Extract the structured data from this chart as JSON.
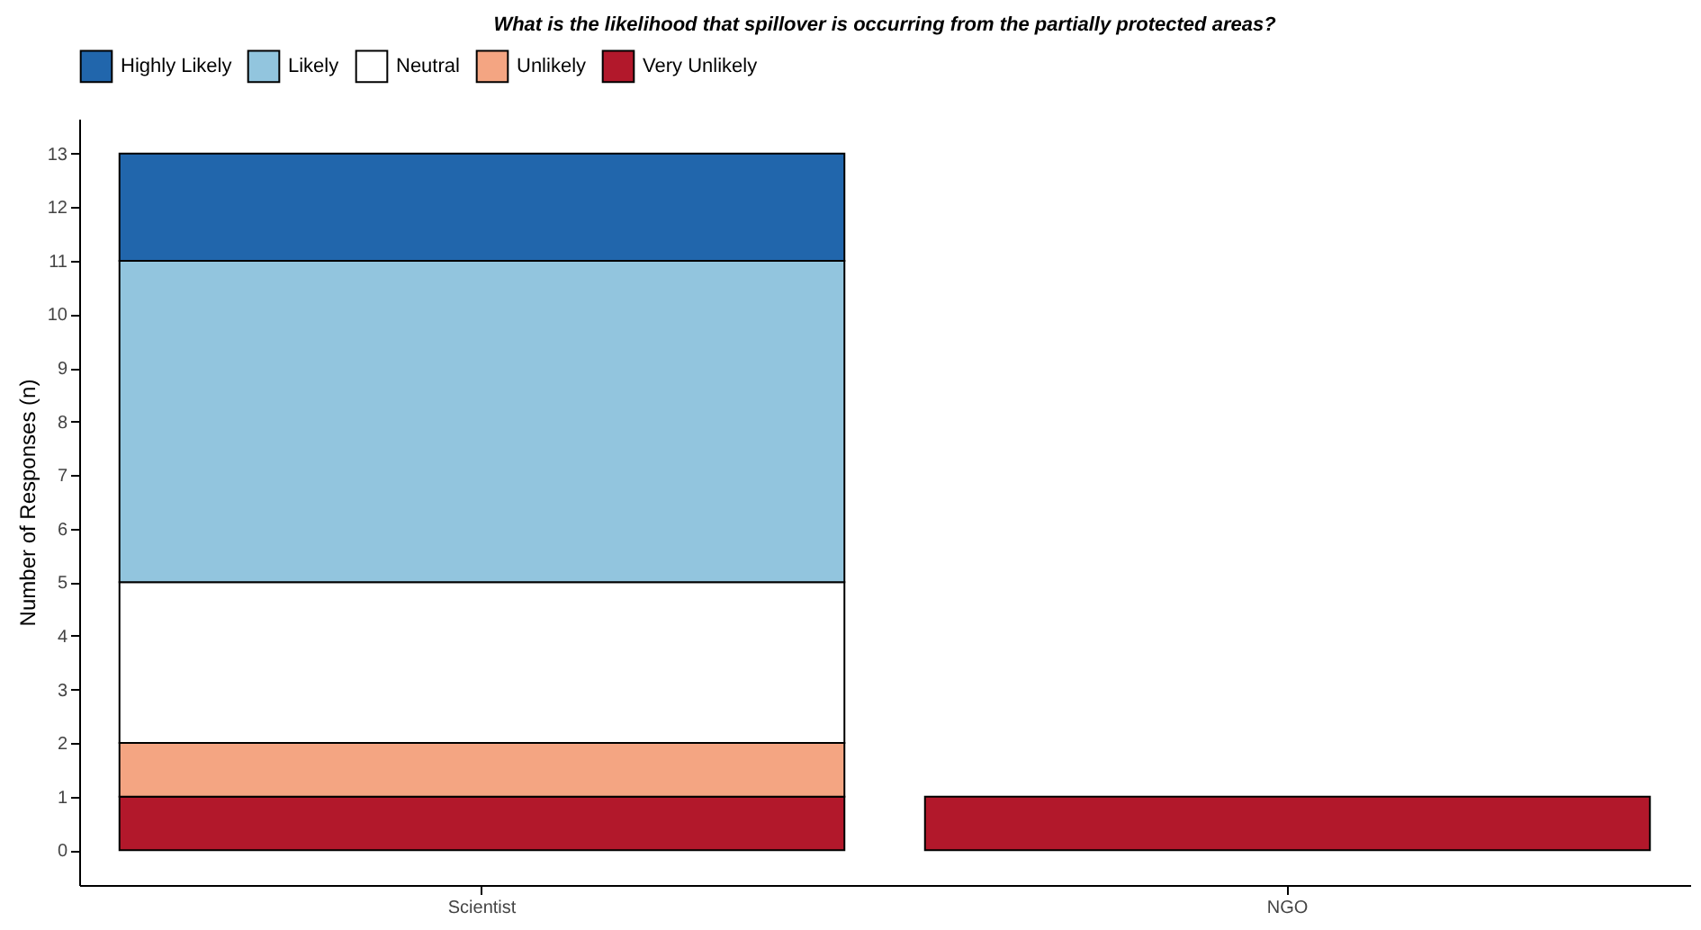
{
  "chart_data": {
    "type": "bar",
    "title": "What is the likelihood that spillover is occurring from the partially protected areas?",
    "ylabel": "Number of Responses (n)",
    "categories": [
      "Scientist",
      "NGO"
    ],
    "stacked": true,
    "legend": "top",
    "series": [
      {
        "name": "Very Unlikely",
        "color": "#b2182b",
        "values": [
          1,
          1
        ]
      },
      {
        "name": "Unlikely",
        "color": "#f4a582",
        "values": [
          1,
          null
        ]
      },
      {
        "name": "Neutral",
        "color": "#ffffff",
        "values": [
          3,
          null
        ]
      },
      {
        "name": "Likely",
        "color": "#92c5de",
        "values": [
          6,
          null
        ]
      },
      {
        "name": "Highly Likely",
        "color": "#2166ac",
        "values": [
          2,
          null
        ]
      }
    ],
    "ylim": [
      -0.65,
      13.65
    ],
    "yticks": [
      0,
      1,
      2,
      3,
      4,
      5,
      6,
      7,
      8,
      9,
      10,
      11,
      12,
      13
    ],
    "grid": false
  }
}
